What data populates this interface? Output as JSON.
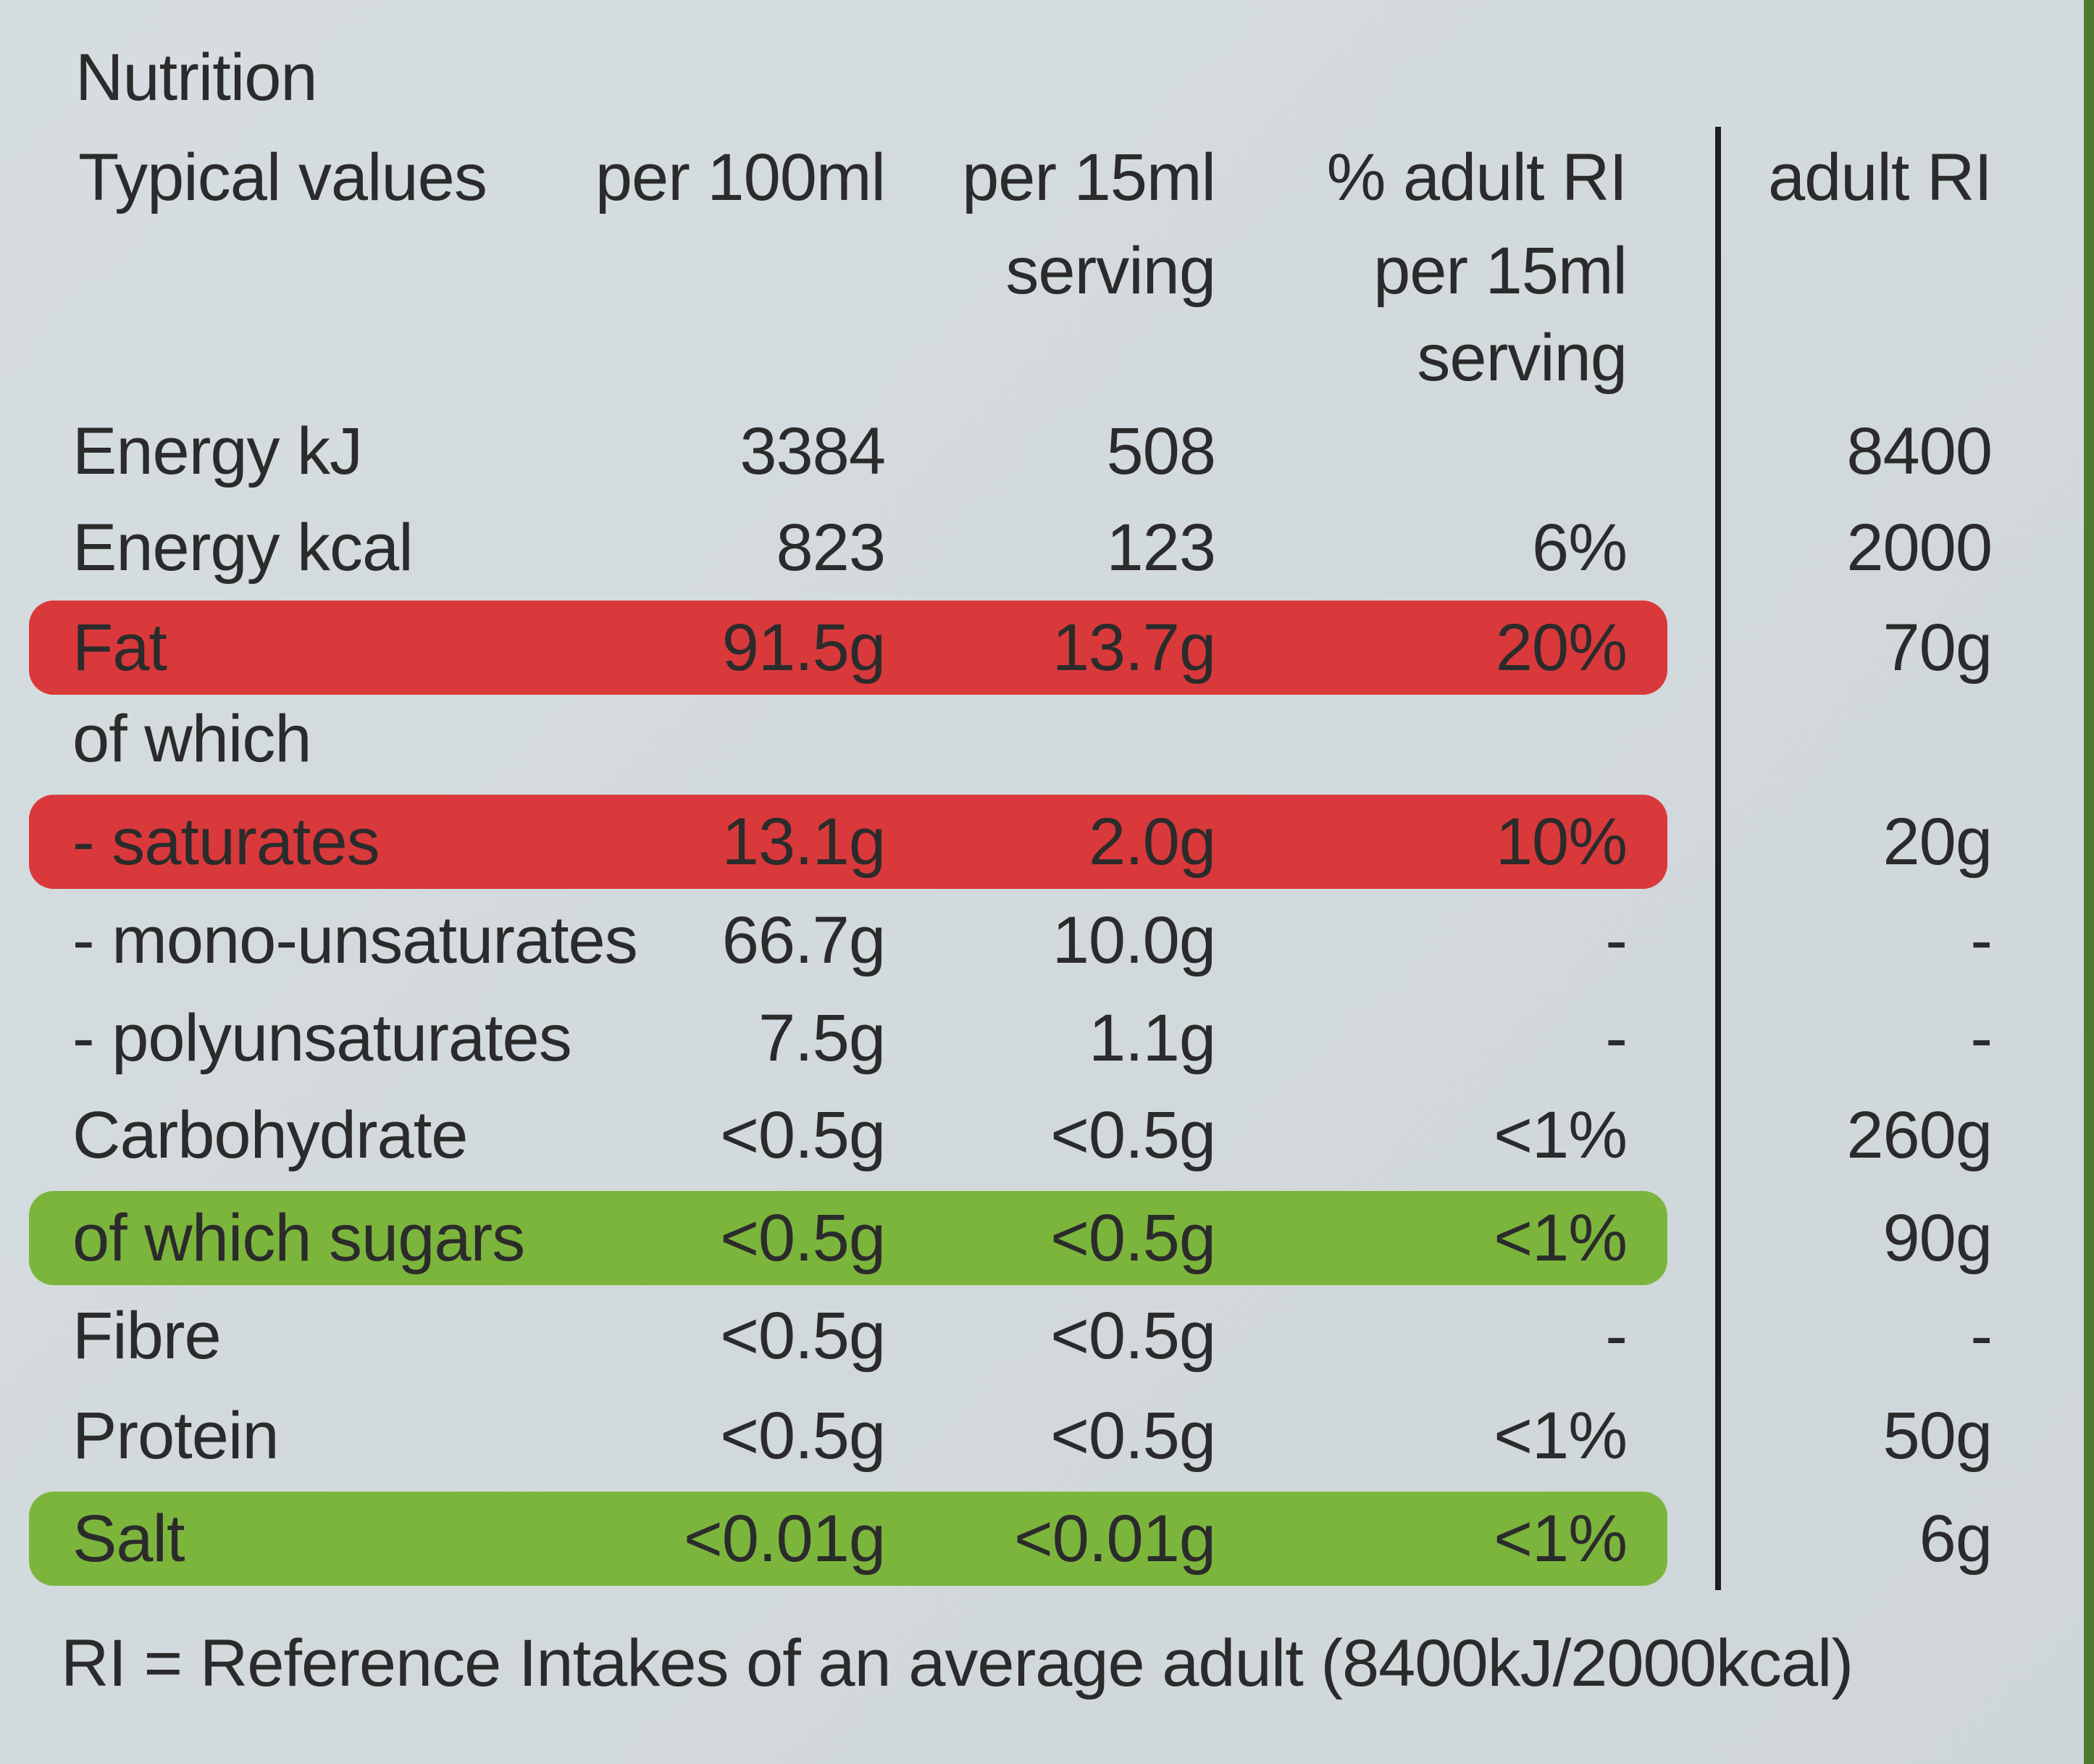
{
  "title": "Nutrition",
  "header": [
    [
      "Typical values"
    ],
    [
      "per 100ml"
    ],
    [
      "per 15ml",
      "serving"
    ],
    [
      "% adult RI",
      "per 15ml",
      "serving"
    ],
    [
      "adult RI"
    ]
  ],
  "rows": [
    {
      "cells": [
        "Energy kJ",
        "3384",
        "508",
        null,
        "8400"
      ]
    },
    {
      "cells": [
        "Energy kcal",
        "823",
        "123",
        "6%",
        "2000"
      ]
    },
    {
      "cells": [
        "Fat",
        "91.5g",
        "13.7g",
        "20%",
        "70g"
      ],
      "highlight": "#d9393b"
    },
    {
      "cells": [
        "of which",
        null,
        null,
        null,
        null
      ]
    },
    {
      "cells": [
        "- saturates",
        "13.1g",
        "2.0g",
        "10%",
        "20g"
      ],
      "highlight": "#d9393b"
    },
    {
      "cells": [
        "- mono-unsaturates",
        "66.7g",
        "10.0g",
        "-",
        "-"
      ]
    },
    {
      "cells": [
        "- polyunsaturates",
        "7.5g",
        "1.1g",
        "-",
        "-"
      ]
    },
    {
      "cells": [
        "Carbohydrate",
        "<0.5g",
        "<0.5g",
        "<1%",
        "260g"
      ]
    },
    {
      "cells": [
        "of which sugars",
        "<0.5g",
        "<0.5g",
        "<1%",
        "90g"
      ],
      "highlight": "#7cb53c"
    },
    {
      "cells": [
        "Fibre",
        "<0.5g",
        "<0.5g",
        "-",
        "-"
      ]
    },
    {
      "cells": [
        "Protein",
        "<0.5g",
        "<0.5g",
        "<1%",
        "50g"
      ]
    },
    {
      "cells": [
        "Salt",
        "<0.01g",
        "<0.01g",
        "<1%",
        "6g"
      ],
      "highlight": "#7cb53c"
    }
  ],
  "footer": "RI = Reference Intakes of an average adult (8400kJ/2000kcal)"
}
